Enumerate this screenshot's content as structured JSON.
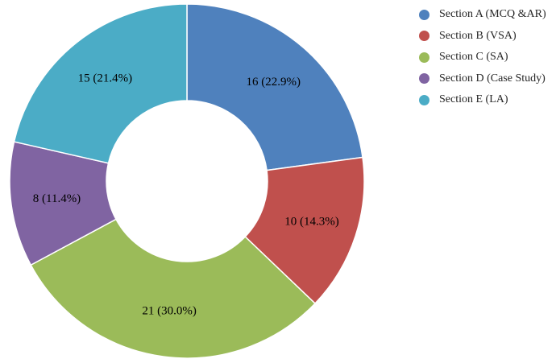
{
  "chart_data": {
    "type": "pie",
    "donut": true,
    "legend_position": "right",
    "categories": [
      "Section A (MCQ &AR)",
      "Section B (VSA)",
      "Section C (SA)",
      "Section D (Case Study)",
      "Section E (LA)"
    ],
    "values": [
      16,
      10,
      21,
      8,
      15
    ],
    "slice_labels": [
      "16 (22.9%)",
      "10 (14.3%)",
      "21 (30.0%)",
      "8 (11.4%)",
      "15 (21.4%)"
    ],
    "colors": [
      "#4f81bd",
      "#c0504d",
      "#9bbb59",
      "#8064a2",
      "#4bacc6"
    ]
  }
}
